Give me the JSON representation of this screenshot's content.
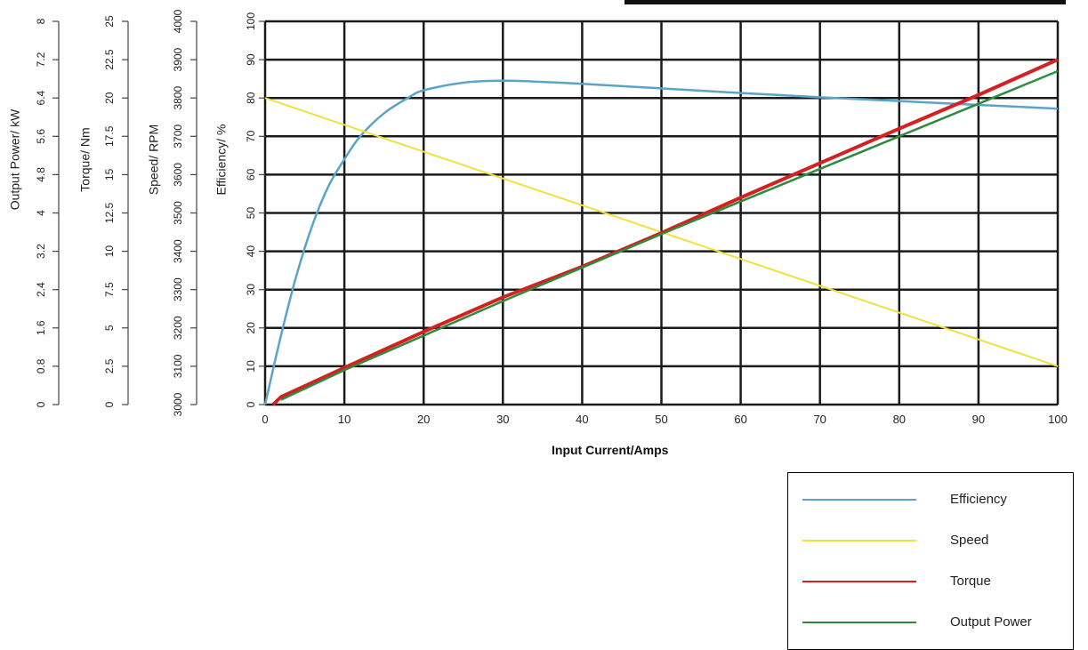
{
  "chart_data": {
    "type": "line",
    "xlabel": "Input Current/Amps",
    "xlim": [
      0,
      100
    ],
    "x_ticks": [
      "0",
      "10",
      "20",
      "30",
      "40",
      "50",
      "60",
      "70",
      "80",
      "90",
      "100"
    ],
    "grid": true,
    "legend_placement": "bottom-right",
    "y_axes": [
      {
        "id": "power",
        "label": "Output Power/ kW",
        "ticks": [
          "0",
          "0.8",
          "1.6",
          "2.4",
          "3.2",
          "4",
          "4.8",
          "5.6",
          "6.4",
          "7.2",
          "8"
        ],
        "ylim": [
          0,
          8
        ]
      },
      {
        "id": "torque",
        "label": "Torque/ Nm",
        "ticks": [
          "0",
          "2.5",
          "5",
          "7.5",
          "10",
          "12.5",
          "15",
          "17.5",
          "20",
          "22.5",
          "25"
        ],
        "ylim": [
          0,
          25
        ]
      },
      {
        "id": "speed",
        "label": "Speed/ RPM",
        "ticks": [
          "3000",
          "3100",
          "3200",
          "3300",
          "3400",
          "3500",
          "3600",
          "3700",
          "3800",
          "3900",
          "4000"
        ],
        "ylim": [
          3000,
          4000
        ]
      },
      {
        "id": "eff",
        "label": "Efficiency/ %",
        "ticks": [
          "0",
          "10",
          "20",
          "30",
          "40",
          "50",
          "60",
          "70",
          "80",
          "90",
          "100"
        ],
        "ylim": [
          0,
          100
        ]
      }
    ],
    "series": [
      {
        "name": "Efficiency",
        "axis": "eff",
        "color": "#5ba3c8",
        "x": [
          0,
          2,
          4,
          6,
          8,
          10,
          12,
          15,
          18,
          20,
          25,
          30,
          35,
          40,
          50,
          60,
          70,
          80,
          90,
          100
        ],
        "y": [
          0,
          18,
          34,
          47,
          57,
          64,
          70,
          76,
          80,
          82,
          84,
          84.5,
          84.2,
          83.7,
          82.5,
          81.3,
          80.2,
          79.2,
          78.2,
          77.2
        ]
      },
      {
        "name": "Speed",
        "axis": "speed",
        "color": "#f0e040",
        "x": [
          0,
          100
        ],
        "y": [
          3800,
          3100
        ]
      },
      {
        "name": "Torque",
        "axis": "torque",
        "color": "#d42020",
        "x": [
          1,
          2,
          10,
          20,
          30,
          40,
          50,
          60,
          70,
          80,
          90,
          100
        ],
        "y": [
          0,
          0.5,
          2.4,
          4.75,
          7.0,
          9.0,
          11.2,
          13.5,
          15.75,
          18.0,
          20.2,
          22.5
        ]
      },
      {
        "name": "Output Power",
        "axis": "power",
        "color": "#2e8b3e",
        "x": [
          2,
          10,
          20,
          30,
          40,
          50,
          60,
          70,
          80,
          90,
          100
        ],
        "y": [
          0.1,
          0.72,
          1.44,
          2.16,
          2.86,
          3.56,
          4.24,
          4.92,
          5.6,
          6.28,
          6.96
        ]
      }
    ]
  }
}
